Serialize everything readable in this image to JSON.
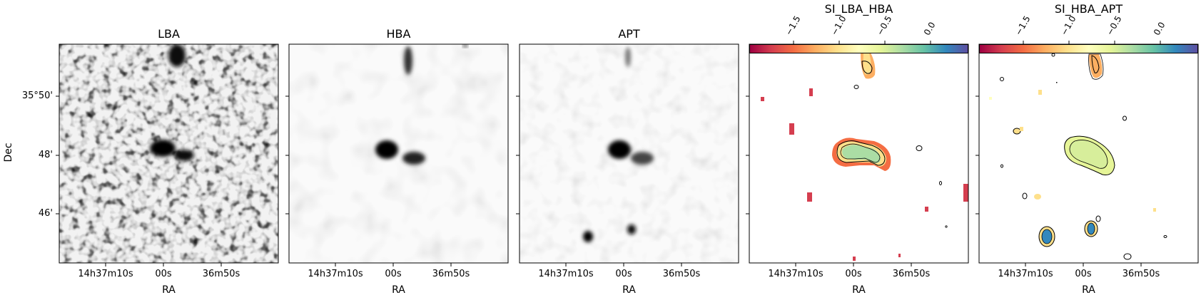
{
  "panels": [
    {
      "title": "LBA",
      "xlabel": "RA",
      "xticks": [
        "14h37m10s",
        "00s",
        "36m50s"
      ],
      "yticks": [
        "35°50'",
        "48'",
        "46'"
      ],
      "ylabel": "Dec"
    },
    {
      "title": "HBA",
      "xlabel": "RA",
      "xticks": [
        "14h37m10s",
        "00s",
        "36m50s"
      ]
    },
    {
      "title": "APT",
      "xlabel": "RA",
      "xticks": [
        "14h37m10s",
        "00s",
        "36m50s"
      ]
    },
    {
      "title": "SI_LBA_HBA",
      "xlabel": "RA",
      "xticks": [
        "14h37m10s",
        "00s",
        "36m50s"
      ],
      "cbticks": [
        "−1.5",
        "−1.0",
        "−0.5",
        "0.0"
      ]
    },
    {
      "title": "SI_HBA_APT",
      "xlabel": "RA",
      "xticks": [
        "14h37m10s",
        "00s",
        "36m50s"
      ],
      "cbticks": [
        "−1.5",
        "−1.0",
        "−0.5",
        "0.0"
      ]
    }
  ],
  "colors": {
    "cmap": "Spectral",
    "gray": "Greys"
  }
}
